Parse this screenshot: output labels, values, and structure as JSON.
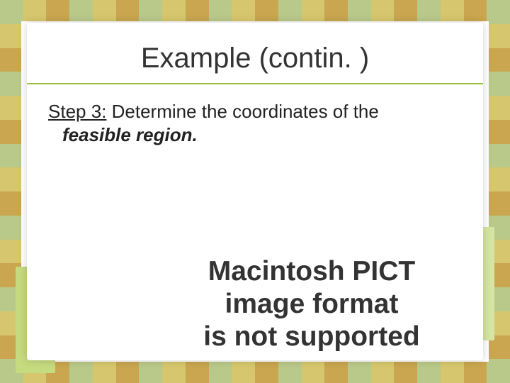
{
  "slide": {
    "title": "Example (contin. )",
    "step_label": "Step 3:",
    "body_line1": " Determine the coordinates of the",
    "body_line2_em": "feasible region.",
    "pict_message_l1": "Macintosh PICT",
    "pict_message_l2": "image format",
    "pict_message_l3": "is not supported"
  },
  "palette": {
    "stripe_colors": [
      "#dce8b6",
      "#b9c98a",
      "#f0db7d",
      "#6b8e4a",
      "#d6c66d",
      "#a8c06a",
      "#e6d88a",
      "#c9a64f",
      "#e0d7a0"
    ],
    "title_rule": "#9bbf3e",
    "card_bg": "#ffffff",
    "text": "#333333",
    "accent_l": "#c6da7f",
    "accent_r": "#d6e6a2"
  }
}
